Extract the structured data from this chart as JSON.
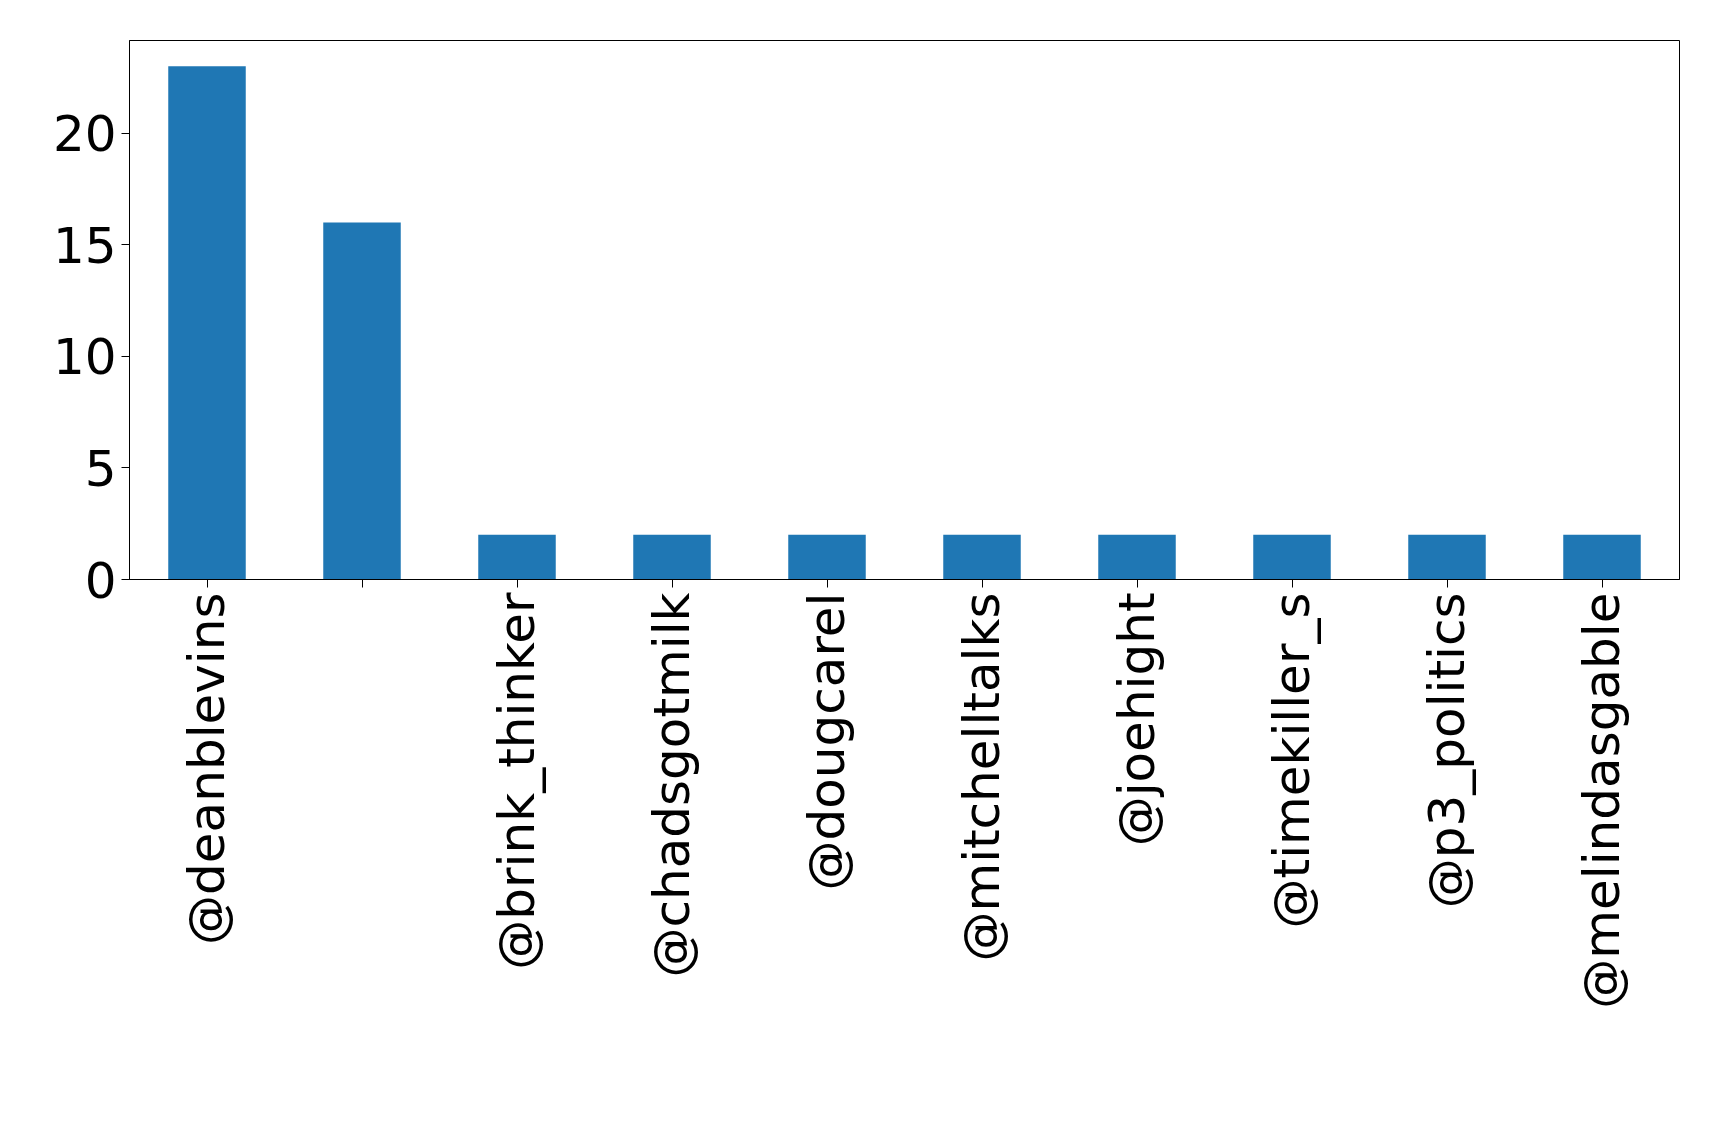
{
  "chart_data": {
    "type": "bar",
    "categories": [
      "@deanblevins",
      null,
      "@brink_thinker",
      "@chadsgotmilk",
      "@dougcarel",
      "@mitchelltalks",
      "@joehight",
      "@timekiller_s",
      "@p3_politics",
      "@melindasgable"
    ],
    "values": [
      23,
      16,
      2,
      2,
      2,
      2,
      2,
      2,
      2,
      2
    ],
    "color": "#1f77b4",
    "ylim": [
      0,
      24.15
    ],
    "yticks": [
      0,
      5,
      10,
      15,
      20
    ],
    "grid": false
  }
}
